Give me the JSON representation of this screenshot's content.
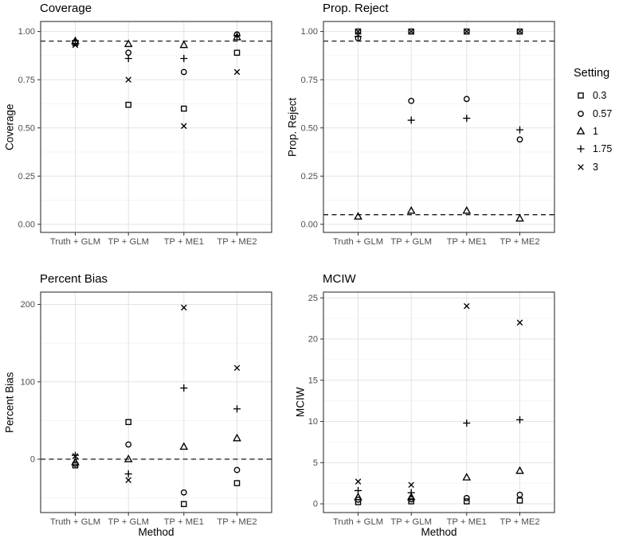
{
  "figure": {
    "background": "#ffffff",
    "point_color": "#000000",
    "panel_border_color": "#333333",
    "grid_major_color": "#e3e3e3",
    "grid_minor_color": "#f2f2f2",
    "axis_text_color": "#4d4d4d",
    "ref_line_color": "#000000"
  },
  "legend": {
    "title": "Setting",
    "entries": [
      {
        "symbol": "square",
        "label": "0.3"
      },
      {
        "symbol": "circle",
        "label": "0.57"
      },
      {
        "symbol": "triangle",
        "label": "1"
      },
      {
        "symbol": "plus",
        "label": "1.75"
      },
      {
        "symbol": "x",
        "label": "3"
      }
    ]
  },
  "chart_data": [
    {
      "type": "scatter",
      "title": "Coverage",
      "ylabel": "Coverage",
      "xlabel": "",
      "categories": [
        "Truth + GLM",
        "TP + GLM",
        "TP + ME1",
        "TP + ME2"
      ],
      "yticks": [
        0,
        0.25,
        0.5,
        0.75,
        1.0
      ],
      "ytick_labels": [
        "0.00",
        "0.25",
        "0.50",
        "0.75",
        "1.00"
      ],
      "ylim": [
        -0.042,
        1.052
      ],
      "ref_lines": [
        0.95
      ],
      "grid": true,
      "legend_position": "right-of-figure",
      "series": [
        {
          "name": "0.3",
          "marker": "square",
          "values": [
            0.94,
            0.62,
            0.6,
            0.89
          ]
        },
        {
          "name": "0.57",
          "marker": "circle",
          "values": [
            0.945,
            0.89,
            0.79,
            0.985
          ]
        },
        {
          "name": "1",
          "marker": "triangle",
          "values": [
            0.95,
            0.935,
            0.93,
            0.97
          ]
        },
        {
          "name": "1.75",
          "marker": "plus",
          "values": [
            0.952,
            0.86,
            0.86,
            0.978
          ]
        },
        {
          "name": "3",
          "marker": "x",
          "values": [
            0.93,
            0.75,
            0.51,
            0.79
          ]
        }
      ]
    },
    {
      "type": "scatter",
      "title": "Prop. Reject",
      "ylabel": "Prop. Reject",
      "xlabel": "",
      "categories": [
        "Truth + GLM",
        "TP + GLM",
        "TP + ME1",
        "TP + ME2"
      ],
      "yticks": [
        0,
        0.25,
        0.5,
        0.75,
        1.0
      ],
      "ytick_labels": [
        "0.00",
        "0.25",
        "0.50",
        "0.75",
        "1.00"
      ],
      "ylim": [
        -0.042,
        1.052
      ],
      "ref_lines": [
        0.95,
        0.05
      ],
      "grid": true,
      "legend_position": "right-of-figure",
      "series": [
        {
          "name": "0.3",
          "marker": "square",
          "values": [
            1.0,
            1.0,
            1.0,
            1.0
          ]
        },
        {
          "name": "0.57",
          "marker": "circle",
          "values": [
            0.965,
            0.64,
            0.65,
            0.44
          ]
        },
        {
          "name": "1",
          "marker": "triangle",
          "values": [
            0.04,
            0.07,
            0.07,
            0.03
          ]
        },
        {
          "name": "1.75",
          "marker": "plus",
          "values": [
            0.975,
            0.54,
            0.55,
            0.49
          ]
        },
        {
          "name": "3",
          "marker": "x",
          "values": [
            1.0,
            1.0,
            1.0,
            1.0
          ]
        }
      ]
    },
    {
      "type": "scatter",
      "title": "Percent Bias",
      "ylabel": "Percent Bias",
      "xlabel": "Method",
      "categories": [
        "Truth + GLM",
        "TP + GLM",
        "TP + ME1",
        "TP + ME2"
      ],
      "yticks": [
        0,
        100,
        200
      ],
      "ytick_labels": [
        "0",
        "100",
        "200"
      ],
      "ylim": [
        -69,
        216
      ],
      "ref_lines": [
        0
      ],
      "grid": true,
      "legend_position": "right-of-figure",
      "series": [
        {
          "name": "0.3",
          "marker": "square",
          "values": [
            -8,
            48,
            -58,
            -31
          ]
        },
        {
          "name": "0.57",
          "marker": "circle",
          "values": [
            -6,
            19,
            -43,
            -14
          ]
        },
        {
          "name": "1",
          "marker": "triangle",
          "values": [
            -4,
            0,
            16,
            27
          ]
        },
        {
          "name": "1.75",
          "marker": "plus",
          "values": [
            5,
            -19,
            92,
            65
          ]
        },
        {
          "name": "3",
          "marker": "x",
          "values": [
            4,
            -27,
            196,
            118
          ]
        }
      ]
    },
    {
      "type": "scatter",
      "title": "MCIW",
      "ylabel": "MCIW",
      "xlabel": "Method",
      "categories": [
        "Truth + GLM",
        "TP + GLM",
        "TP + ME1",
        "TP + ME2"
      ],
      "yticks": [
        0,
        5,
        10,
        15,
        20,
        25
      ],
      "ytick_labels": [
        "0",
        "5",
        "10",
        "15",
        "20",
        "25"
      ],
      "ylim": [
        -1.06,
        25.7
      ],
      "ref_lines": [],
      "grid": true,
      "legend_position": "right-of-figure",
      "series": [
        {
          "name": "0.3",
          "marker": "square",
          "values": [
            0.2,
            0.3,
            0.3,
            0.4
          ]
        },
        {
          "name": "0.57",
          "marker": "circle",
          "values": [
            0.5,
            0.55,
            0.7,
            1.1
          ]
        },
        {
          "name": "1",
          "marker": "triangle",
          "values": [
            0.8,
            0.8,
            3.2,
            4.0
          ]
        },
        {
          "name": "1.75",
          "marker": "plus",
          "values": [
            1.6,
            1.35,
            9.8,
            10.2
          ]
        },
        {
          "name": "3",
          "marker": "x",
          "values": [
            2.7,
            2.3,
            24.0,
            22.0
          ]
        }
      ]
    }
  ]
}
